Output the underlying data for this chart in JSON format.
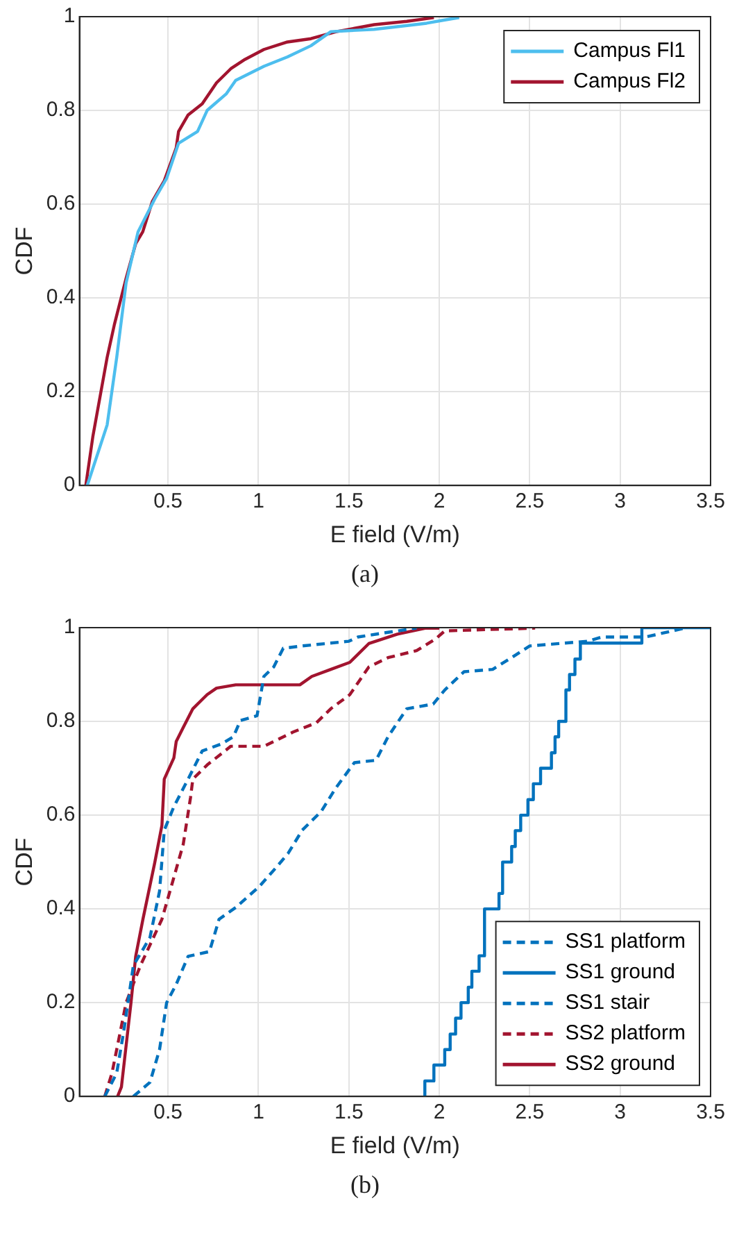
{
  "chart_data": [
    {
      "type": "line",
      "xlabel": "E field (V/m)",
      "ylabel": "CDF",
      "annotations": [
        "(a)"
      ],
      "xlim": [
        0.01,
        3.5
      ],
      "ylim": [
        0,
        1
      ],
      "xticks": [
        0.5,
        1,
        1.5,
        2,
        2.5,
        3,
        3.5
      ],
      "yticks": [
        0,
        0.2,
        0.4,
        0.6,
        0.8,
        1
      ],
      "grid": true,
      "legend": "top right",
      "line_style": "solid",
      "series": [
        {
          "name": "Campus Fl1",
          "color": "#4dbeee",
          "x": [
            0.053,
            0.163,
            0.216,
            0.268,
            0.334,
            0.426,
            0.492,
            0.558,
            0.663,
            0.716,
            0.821,
            0.874,
            1.03,
            1.16,
            1.29,
            1.4,
            1.64,
            1.93,
            2.03,
            2.11
          ],
          "values": [
            0,
            0.129,
            0.273,
            0.432,
            0.541,
            0.611,
            0.655,
            0.73,
            0.755,
            0.8,
            0.835,
            0.864,
            0.894,
            0.914,
            0.938,
            0.968,
            0.973,
            0.986,
            0.993,
            0.998
          ]
        },
        {
          "name": "Campus Fl2",
          "color": "#a2142f",
          "x": [
            0.045,
            0.084,
            0.163,
            0.203,
            0.268,
            0.321,
            0.36,
            0.413,
            0.479,
            0.545,
            0.558,
            0.61,
            0.689,
            0.768,
            0.847,
            0.926,
            1.03,
            1.16,
            1.29,
            1.43,
            1.64,
            1.82,
            1.97
          ],
          "values": [
            0,
            0.104,
            0.273,
            0.343,
            0.442,
            0.516,
            0.541,
            0.606,
            0.65,
            0.72,
            0.755,
            0.79,
            0.814,
            0.859,
            0.889,
            0.909,
            0.93,
            0.946,
            0.953,
            0.968,
            0.983,
            0.99,
            0.998
          ]
        }
      ]
    },
    {
      "type": "line",
      "xlabel": "E field (V/m)",
      "ylabel": "CDF",
      "annotations": [
        "(b)"
      ],
      "xlim": [
        0.01,
        3.5
      ],
      "ylim": [
        0,
        1
      ],
      "xticks": [
        0.5,
        1,
        1.5,
        2,
        2.5,
        3,
        3.5
      ],
      "yticks": [
        0,
        0.2,
        0.4,
        0.6,
        0.8,
        1
      ],
      "grid": true,
      "legend": "bottom right",
      "series": [
        {
          "name": "SS1 platform",
          "color": "#0072bd",
          "line_style": "dashed",
          "x": [
            0.308,
            0.4,
            0.453,
            0.492,
            0.545,
            0.611,
            0.729,
            0.782,
            0.874,
            1.005,
            1.097,
            1.163,
            1.242,
            1.347,
            1.426,
            1.53,
            1.65,
            1.716,
            1.82,
            1.966,
            2.03,
            2.137,
            2.295,
            2.4,
            2.5,
            2.82,
            2.9,
            3.14,
            3.37
          ],
          "values": [
            0,
            0.03,
            0.1,
            0.2,
            0.239,
            0.299,
            0.309,
            0.378,
            0.403,
            0.448,
            0.488,
            0.518,
            0.568,
            0.608,
            0.657,
            0.712,
            0.717,
            0.767,
            0.827,
            0.837,
            0.867,
            0.906,
            0.911,
            0.936,
            0.961,
            0.971,
            0.98,
            0.98,
            1.0
          ]
        },
        {
          "name": "SS1 ground",
          "color": "#0072bd",
          "type": "step",
          "line_style": "solid",
          "x": [
            1.92,
            1.92,
            1.97,
            2.03,
            2.06,
            2.09,
            2.12,
            2.16,
            2.18,
            2.22,
            2.25,
            2.33,
            2.35,
            2.4,
            2.42,
            2.45,
            2.49,
            2.52,
            2.56,
            2.62,
            2.64,
            2.66,
            2.7,
            2.72,
            2.75,
            2.78,
            3.12,
            3.5
          ],
          "values": [
            0,
            0.033,
            0.067,
            0.1,
            0.133,
            0.167,
            0.2,
            0.233,
            0.267,
            0.3,
            0.4,
            0.433,
            0.5,
            0.533,
            0.567,
            0.6,
            0.633,
            0.667,
            0.7,
            0.733,
            0.767,
            0.8,
            0.867,
            0.9,
            0.933,
            0.967,
            1.0,
            1.0
          ]
        },
        {
          "name": "SS1 stair",
          "color": "#0072bd",
          "line_style": "dashed",
          "x": [
            0.15,
            0.216,
            0.255,
            0.308,
            0.4,
            0.453,
            0.479,
            0.532,
            0.611,
            0.689,
            0.795,
            0.861,
            0.9,
            0.992,
            1.03,
            1.084,
            1.137,
            1.242,
            1.5,
            1.55,
            1.716,
            1.874
          ],
          "values": [
            0,
            0.05,
            0.139,
            0.279,
            0.339,
            0.438,
            0.568,
            0.618,
            0.677,
            0.737,
            0.752,
            0.767,
            0.802,
            0.812,
            0.896,
            0.916,
            0.956,
            0.961,
            0.971,
            0.98,
            0.99,
            0.999
          ]
        },
        {
          "name": "SS2 platform",
          "color": "#a2142f",
          "line_style": "dashed",
          "x": [
            0.15,
            0.19,
            0.268,
            0.347,
            0.466,
            0.518,
            0.584,
            0.624,
            0.637,
            0.716,
            0.847,
            1.03,
            1.19,
            1.32,
            1.4,
            1.505,
            1.61,
            1.716,
            1.874,
            1.98,
            2.03,
            2.53
          ],
          "values": [
            0,
            0.05,
            0.2,
            0.279,
            0.378,
            0.448,
            0.538,
            0.637,
            0.677,
            0.707,
            0.747,
            0.747,
            0.777,
            0.797,
            0.827,
            0.857,
            0.916,
            0.936,
            0.951,
            0.976,
            0.993,
            0.999
          ]
        },
        {
          "name": "SS2 ground",
          "color": "#a2142f",
          "line_style": "solid",
          "x": [
            0.221,
            0.242,
            0.295,
            0.321,
            0.361,
            0.426,
            0.466,
            0.479,
            0.532,
            0.545,
            0.584,
            0.637,
            0.716,
            0.768,
            0.874,
            1.229,
            1.295,
            1.4,
            1.505,
            1.61,
            1.768,
            1.926,
            2.0
          ],
          "values": [
            0,
            0.02,
            0.2,
            0.299,
            0.378,
            0.498,
            0.578,
            0.677,
            0.722,
            0.757,
            0.787,
            0.827,
            0.857,
            0.871,
            0.878,
            0.878,
            0.896,
            0.911,
            0.926,
            0.966,
            0.986,
            0.999,
            0.999
          ]
        }
      ]
    }
  ]
}
